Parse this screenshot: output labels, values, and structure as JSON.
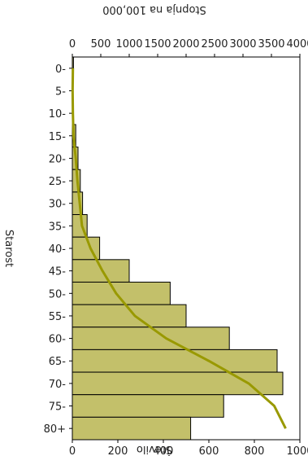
{
  "chart_data": {
    "type": "bar",
    "orientation": "rotated",
    "categories": [
      "0-",
      "5-",
      "10-",
      "15-",
      "20-",
      "25-",
      "30-",
      "35-",
      "40-",
      "45-",
      "50-",
      "55-",
      "60-",
      "65-",
      "70-",
      "75-",
      "80+"
    ],
    "series": [
      {
        "type": "bar",
        "axis": "left",
        "values": [
          5,
          3,
          5,
          15,
          25,
          35,
          45,
          65,
          120,
          250,
          430,
          500,
          690,
          900,
          925,
          665,
          520
        ]
      },
      {
        "type": "line",
        "axis": "right",
        "values": [
          10,
          5,
          10,
          20,
          60,
          90,
          130,
          170,
          320,
          530,
          770,
          1100,
          1650,
          2400,
          3100,
          3550,
          3750
        ]
      }
    ],
    "xlabel": "Starost",
    "ylabel": "Število",
    "y2label": "Stopnja na 100,000",
    "ylim": [
      0,
      1000
    ],
    "yticks": [
      "0",
      "200",
      "400",
      "600",
      "800",
      "1000"
    ],
    "y2lim": [
      0,
      4000
    ],
    "y2ticks": [
      "0",
      "500",
      "1000",
      "1500",
      "2000",
      "2500",
      "3000",
      "3500",
      "4000"
    ],
    "bar_color": "#c3c06a",
    "line_color": "#999900",
    "grid": false
  }
}
